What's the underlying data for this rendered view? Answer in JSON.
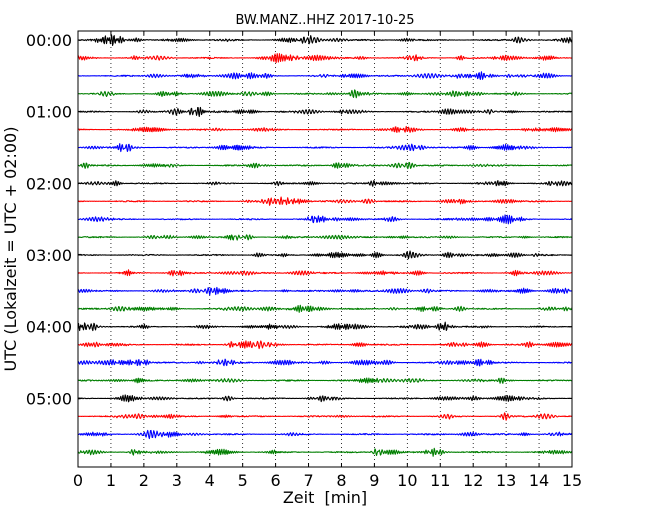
{
  "chart_data": {
    "type": "line",
    "title": "BW.MANZ..HHZ 2017-10-25",
    "xlabel": "Zeit  [min]",
    "ylabel": "UTC (Lokalzeit = UTC + 02:00)",
    "xlim": [
      0,
      15
    ],
    "x_ticks": [
      "0",
      "1",
      "2",
      "3",
      "4",
      "5",
      "6",
      "7",
      "8",
      "9",
      "10",
      "11",
      "12",
      "13",
      "14",
      "15"
    ],
    "y_ticks": [
      "00:00",
      "01:00",
      "02:00",
      "03:00",
      "04:00",
      "05:00"
    ],
    "grid": "vertical-dotted",
    "trace_interval_min": 15,
    "trace_count": 24,
    "color_cycle": [
      "#000000",
      "#ff0000",
      "#0000ff",
      "#007f00"
    ],
    "series": [
      {
        "start": "00:00",
        "color": "#000000"
      },
      {
        "start": "00:15",
        "color": "#ff0000"
      },
      {
        "start": "00:30",
        "color": "#0000ff"
      },
      {
        "start": "00:45",
        "color": "#007f00"
      },
      {
        "start": "01:00",
        "color": "#000000"
      },
      {
        "start": "01:15",
        "color": "#ff0000"
      },
      {
        "start": "01:30",
        "color": "#0000ff"
      },
      {
        "start": "01:45",
        "color": "#007f00"
      },
      {
        "start": "02:00",
        "color": "#000000"
      },
      {
        "start": "02:15",
        "color": "#ff0000"
      },
      {
        "start": "02:30",
        "color": "#0000ff"
      },
      {
        "start": "02:45",
        "color": "#007f00"
      },
      {
        "start": "03:00",
        "color": "#000000"
      },
      {
        "start": "03:15",
        "color": "#ff0000"
      },
      {
        "start": "03:30",
        "color": "#0000ff"
      },
      {
        "start": "03:45",
        "color": "#007f00"
      },
      {
        "start": "04:00",
        "color": "#000000"
      },
      {
        "start": "04:15",
        "color": "#ff0000"
      },
      {
        "start": "04:30",
        "color": "#0000ff"
      },
      {
        "start": "04:45",
        "color": "#007f00"
      },
      {
        "start": "05:00",
        "color": "#000000"
      },
      {
        "start": "05:15",
        "color": "#ff0000"
      },
      {
        "start": "05:30",
        "color": "#0000ff"
      },
      {
        "start": "05:45",
        "color": "#007f00"
      }
    ]
  }
}
